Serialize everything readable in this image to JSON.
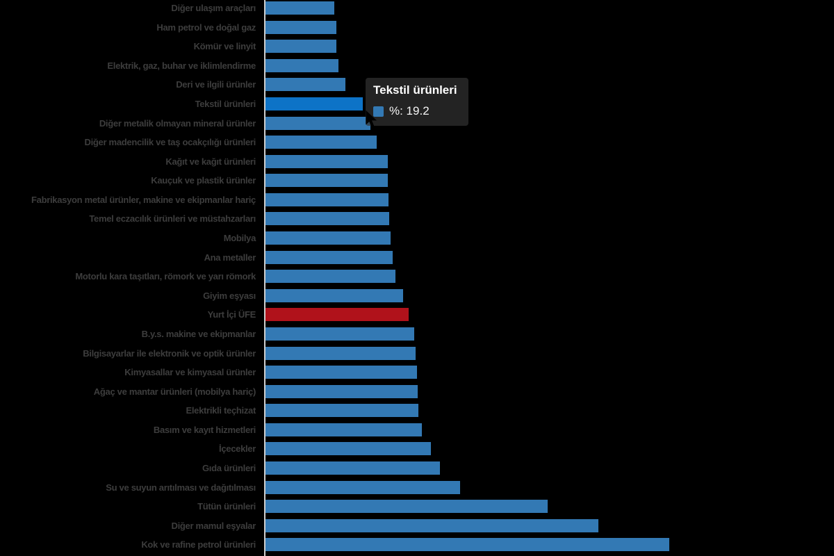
{
  "chart_data": {
    "type": "bar",
    "orientation": "horizontal",
    "unit": "%",
    "categories": [
      "Diğer ulaşım araçları",
      "Ham petrol ve doğal gaz",
      "Kömür ve linyit",
      "Elektrik, gaz, buhar ve iklimlendirme",
      "Deri ve ilgili ürünler",
      "Tekstil ürünleri",
      "Diğer metalik olmayan mineral ürünler",
      "Diğer madencilik ve taş ocakçılığı ürünleri",
      "Kağıt ve kağıt ürünleri",
      "Kauçuk ve plastik ürünler",
      "Fabrikasyon metal ürünler, makine ve ekipmanlar hariç",
      "Temel eczacılık ürünleri ve müstahzarları",
      "Mobilya",
      "Ana metaller",
      "Motorlu kara taşıtları, römork ve yarı römork",
      "Giyim eşyası",
      "Yurt İçi ÜFE",
      "B.y.s. makine ve ekipmanlar",
      "Bilgisayarlar ile elektronik ve optik ürünler",
      "Kimyasallar ve kimyasal ürünler",
      "Ağaç ve mantar ürünleri (mobilya hariç)",
      "Elektrikli teçhizat",
      "Basım ve kayıt hizmetleri",
      "İçecekler",
      "Gıda ürünleri",
      "Su ve suyun arıtılması ve dağıtılması",
      "Tütün ürünleri",
      "Diğer mamul eşyalar",
      "Kok ve rafine petrol ürünleri"
    ],
    "values": [
      13.6,
      14.1,
      14.1,
      14.4,
      15.8,
      19.2,
      20.8,
      22.0,
      24.2,
      24.2,
      24.4,
      24.5,
      24.8,
      25.2,
      25.7,
      27.3,
      28.3,
      29.5,
      29.7,
      30.0,
      30.1,
      30.3,
      30.9,
      32.8,
      34.6,
      38.5,
      55.9,
      65.9,
      80.0
    ],
    "title": "",
    "xlabel": "",
    "ylabel": "",
    "xlim": [
      0,
      112.7
    ],
    "grid": false,
    "legend_position": "none",
    "colors": {
      "bar_default": "#3379b4",
      "bar_highlight": "#0d73c7",
      "bar_accent": "#b0121b",
      "axis_line": "#cfcfcf",
      "label_text": "#3d3d3d"
    },
    "highlight_index": 5,
    "accent_index": 16,
    "hovered_category": "Tekstil ürünleri"
  },
  "tooltip": {
    "title": "Tekstil ürünleri",
    "value_label": "%: 19.2",
    "marker_color": "#3379b4"
  }
}
